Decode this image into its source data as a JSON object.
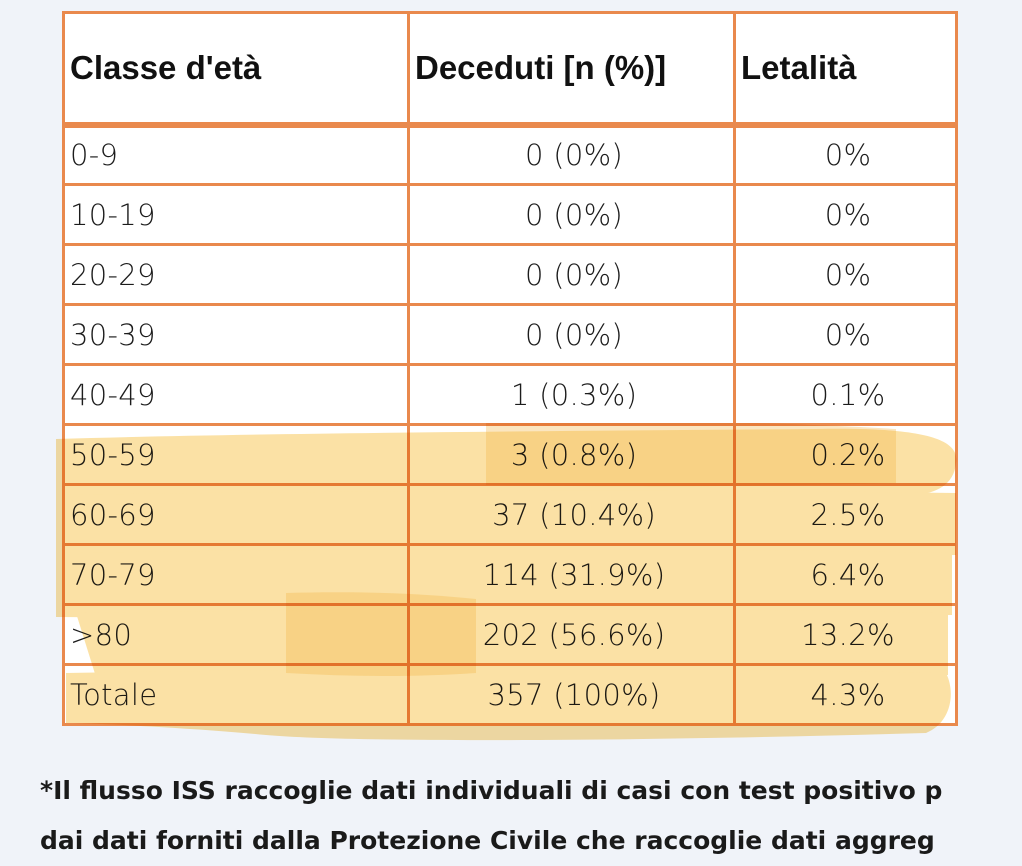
{
  "table": {
    "headers": [
      "Classe d'età",
      "Deceduti [n (%)]",
      "Letalità"
    ],
    "rows": [
      [
        "0-9",
        "0 (0%)",
        "0%"
      ],
      [
        "10-19",
        "0 (0%)",
        "0%"
      ],
      [
        "20-29",
        "0 (0%)",
        "0%"
      ],
      [
        "30-39",
        "0 (0%)",
        "0%"
      ],
      [
        "40-49",
        "1 (0.3%)",
        "0.1%"
      ],
      [
        "50-59",
        "3 (0.8%)",
        "0.2%"
      ],
      [
        "60-69",
        "37 (10.4%)",
        "2.5%"
      ],
      [
        "70-79",
        "114 (31.9%)",
        "6.4%"
      ],
      [
        ">80",
        "202 (56.6%)",
        "13.2%"
      ],
      [
        "Totale",
        "357 (100%)",
        "4.3%"
      ]
    ]
  },
  "footnote": {
    "line1": "*Il flusso ISS raccoglie dati individuali di casi con test positivo p",
    "line2": "dai dati forniti dalla Protezione Civile che raccoglie dati aggreg"
  },
  "colors": {
    "border": "#e9894d",
    "highlight": "#f9d27a",
    "background": "#f0f3f9"
  }
}
